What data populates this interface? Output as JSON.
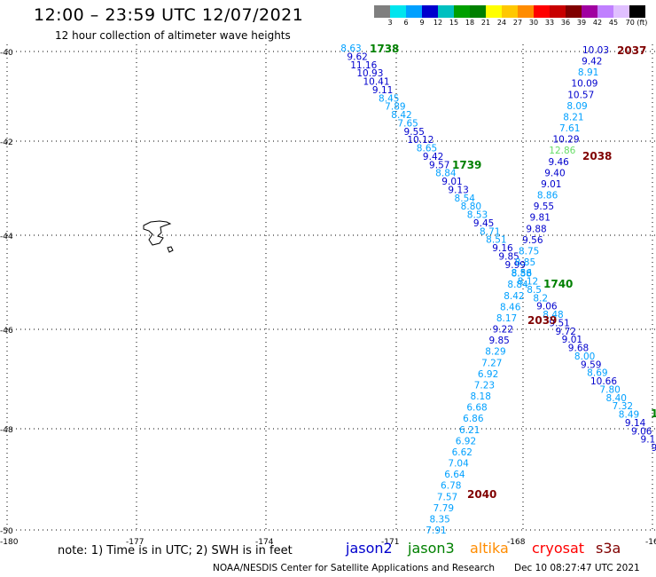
{
  "header": {
    "title": "12:00 – 23:59 UTC 12/07/2021",
    "subtitle": "12 hour collection of altimeter wave heights"
  },
  "color_scale": {
    "labels": [
      "3",
      "6",
      "9",
      "12",
      "15",
      "18",
      "21",
      "24",
      "27",
      "30",
      "33",
      "36",
      "39",
      "42",
      "45",
      "70 (ft)"
    ],
    "colors": [
      "#7f7f7f",
      "#00e5ee",
      "#00a0ff",
      "#0000cd",
      "#00c0c0",
      "#00a000",
      "#008000",
      "#ffff00",
      "#ffc800",
      "#ff8c00",
      "#ff0000",
      "#c80000",
      "#800000",
      "#a000a0",
      "#c080ff",
      "#e0c0ff",
      "#000000"
    ]
  },
  "map": {
    "lat_labels": [
      "-40",
      "-42",
      "-44",
      "-46",
      "-48",
      "-50"
    ],
    "lon_labels": [
      "-180",
      "-177",
      "-174",
      "-171",
      "-168",
      "-16"
    ],
    "pass_labels": [
      {
        "text": "1738",
        "color": "#008000"
      },
      {
        "text": "1739",
        "color": "#008000"
      },
      {
        "text": "1740",
        "color": "#008000"
      },
      {
        "text": "1",
        "color": "#008000"
      },
      {
        "text": "2037",
        "color": "#800000"
      },
      {
        "text": "2038",
        "color": "#800000"
      },
      {
        "text": "2039",
        "color": "#800000"
      },
      {
        "text": "2040",
        "color": "#800000"
      }
    ],
    "track_a": [
      {
        "v": "8.63",
        "c": "#00a0ff"
      },
      {
        "v": "9.62",
        "c": "#0000cd"
      },
      {
        "v": "11.16",
        "c": "#0000cd"
      },
      {
        "v": "10.93",
        "c": "#0000cd"
      },
      {
        "v": "10.41",
        "c": "#0000cd"
      },
      {
        "v": "9.11",
        "c": "#0000cd"
      },
      {
        "v": "8.45",
        "c": "#00a0ff"
      },
      {
        "v": "7.89",
        "c": "#00a0ff"
      },
      {
        "v": "8.42",
        "c": "#00a0ff"
      },
      {
        "v": "7.65",
        "c": "#00a0ff"
      },
      {
        "v": "9.55",
        "c": "#0000cd"
      },
      {
        "v": "10.12",
        "c": "#0000cd"
      },
      {
        "v": "8.65",
        "c": "#00a0ff"
      },
      {
        "v": "9.42",
        "c": "#0000cd"
      },
      {
        "v": "9.57",
        "c": "#0000cd"
      },
      {
        "v": "8.84",
        "c": "#00a0ff"
      },
      {
        "v": "9.01",
        "c": "#0000cd"
      },
      {
        "v": "9.13",
        "c": "#0000cd"
      },
      {
        "v": "8.54",
        "c": "#00a0ff"
      },
      {
        "v": "8.80",
        "c": "#00a0ff"
      },
      {
        "v": "8.53",
        "c": "#00a0ff"
      },
      {
        "v": "9.45",
        "c": "#0000cd"
      },
      {
        "v": "8.71",
        "c": "#00a0ff"
      },
      {
        "v": "8.51",
        "c": "#00a0ff"
      },
      {
        "v": "9.16",
        "c": "#0000cd"
      },
      {
        "v": "9.85",
        "c": "#0000cd"
      },
      {
        "v": "9.99",
        "c": "#0000cd"
      },
      {
        "v": "8.56",
        "c": "#00a0ff"
      },
      {
        "v": "8.12",
        "c": "#00a0ff"
      },
      {
        "v": "8.5",
        "c": "#00a0ff"
      },
      {
        "v": "8.2",
        "c": "#00a0ff"
      },
      {
        "v": "9.06",
        "c": "#0000cd"
      },
      {
        "v": "8.48",
        "c": "#00a0ff"
      },
      {
        "v": "9.51",
        "c": "#0000cd"
      },
      {
        "v": "9.72",
        "c": "#0000cd"
      },
      {
        "v": "9.01",
        "c": "#0000cd"
      },
      {
        "v": "9.68",
        "c": "#0000cd"
      },
      {
        "v": "8.00",
        "c": "#00a0ff"
      },
      {
        "v": "9.59",
        "c": "#0000cd"
      },
      {
        "v": "8.69",
        "c": "#00a0ff"
      },
      {
        "v": "10.66",
        "c": "#0000cd"
      },
      {
        "v": "7.80",
        "c": "#00a0ff"
      },
      {
        "v": "8.40",
        "c": "#00a0ff"
      },
      {
        "v": "7.32",
        "c": "#00a0ff"
      },
      {
        "v": "8.49",
        "c": "#00a0ff"
      },
      {
        "v": "9.14",
        "c": "#0000cd"
      },
      {
        "v": "9.06",
        "c": "#0000cd"
      },
      {
        "v": "9.1",
        "c": "#0000cd"
      },
      {
        "v": "9",
        "c": "#0000cd"
      }
    ],
    "track_b": [
      {
        "v": "10.03",
        "c": "#0000cd"
      },
      {
        "v": "9.42",
        "c": "#0000cd"
      },
      {
        "v": "8.91",
        "c": "#00a0ff"
      },
      {
        "v": "10.09",
        "c": "#0000cd"
      },
      {
        "v": "10.57",
        "c": "#0000cd"
      },
      {
        "v": "8.09",
        "c": "#00a0ff"
      },
      {
        "v": "8.21",
        "c": "#00a0ff"
      },
      {
        "v": "7.61",
        "c": "#00a0ff"
      },
      {
        "v": "10.29",
        "c": "#0000cd"
      },
      {
        "v": "12.86",
        "c": "#66dd66"
      },
      {
        "v": "9.46",
        "c": "#0000cd"
      },
      {
        "v": "9.40",
        "c": "#0000cd"
      },
      {
        "v": "9.01",
        "c": "#0000cd"
      },
      {
        "v": "8.86",
        "c": "#00a0ff"
      },
      {
        "v": "9.55",
        "c": "#0000cd"
      },
      {
        "v": "9.81",
        "c": "#0000cd"
      },
      {
        "v": "9.88",
        "c": "#0000cd"
      },
      {
        "v": "9.56",
        "c": "#0000cd"
      },
      {
        "v": "8.75",
        "c": "#00a0ff"
      },
      {
        "v": "8.85",
        "c": "#00a0ff"
      },
      {
        "v": "8.88",
        "c": "#00a0ff"
      },
      {
        "v": "8.84",
        "c": "#00a0ff"
      },
      {
        "v": "8.42",
        "c": "#00a0ff"
      },
      {
        "v": "8.46",
        "c": "#00a0ff"
      },
      {
        "v": "8.17",
        "c": "#00a0ff"
      },
      {
        "v": "9.22",
        "c": "#0000cd"
      },
      {
        "v": "9.85",
        "c": "#0000cd"
      },
      {
        "v": "8.29",
        "c": "#00a0ff"
      },
      {
        "v": "7.27",
        "c": "#00a0ff"
      },
      {
        "v": "6.92",
        "c": "#00a0ff"
      },
      {
        "v": "7.23",
        "c": "#00a0ff"
      },
      {
        "v": "8.18",
        "c": "#00a0ff"
      },
      {
        "v": "6.68",
        "c": "#00a0ff"
      },
      {
        "v": "6.86",
        "c": "#00a0ff"
      },
      {
        "v": "6.21",
        "c": "#00a0ff"
      },
      {
        "v": "6.92",
        "c": "#00a0ff"
      },
      {
        "v": "6.62",
        "c": "#00a0ff"
      },
      {
        "v": "7.04",
        "c": "#00a0ff"
      },
      {
        "v": "6.64",
        "c": "#00a0ff"
      },
      {
        "v": "6.78",
        "c": "#00a0ff"
      },
      {
        "v": "7.57",
        "c": "#00a0ff"
      },
      {
        "v": "7.79",
        "c": "#00a0ff"
      },
      {
        "v": "8.35",
        "c": "#00a0ff"
      },
      {
        "v": "7.91",
        "c": "#00a0ff"
      }
    ]
  },
  "footer": {
    "note": "note: 1) Time is in UTC; 2) SWH is in feet",
    "missions": [
      {
        "name": "jason2",
        "color": "#0000cd"
      },
      {
        "name": "jason3",
        "color": "#008000"
      },
      {
        "name": "altika",
        "color": "#ff8c00"
      },
      {
        "name": "cryosat",
        "color": "#ff0000"
      },
      {
        "name": "s3a",
        "color": "#800000"
      }
    ],
    "credit": "NOAA/NESDIS Center for Satellite Applications and Research",
    "timestamp": "Dec 10 08:27:47 UTC 2021"
  }
}
